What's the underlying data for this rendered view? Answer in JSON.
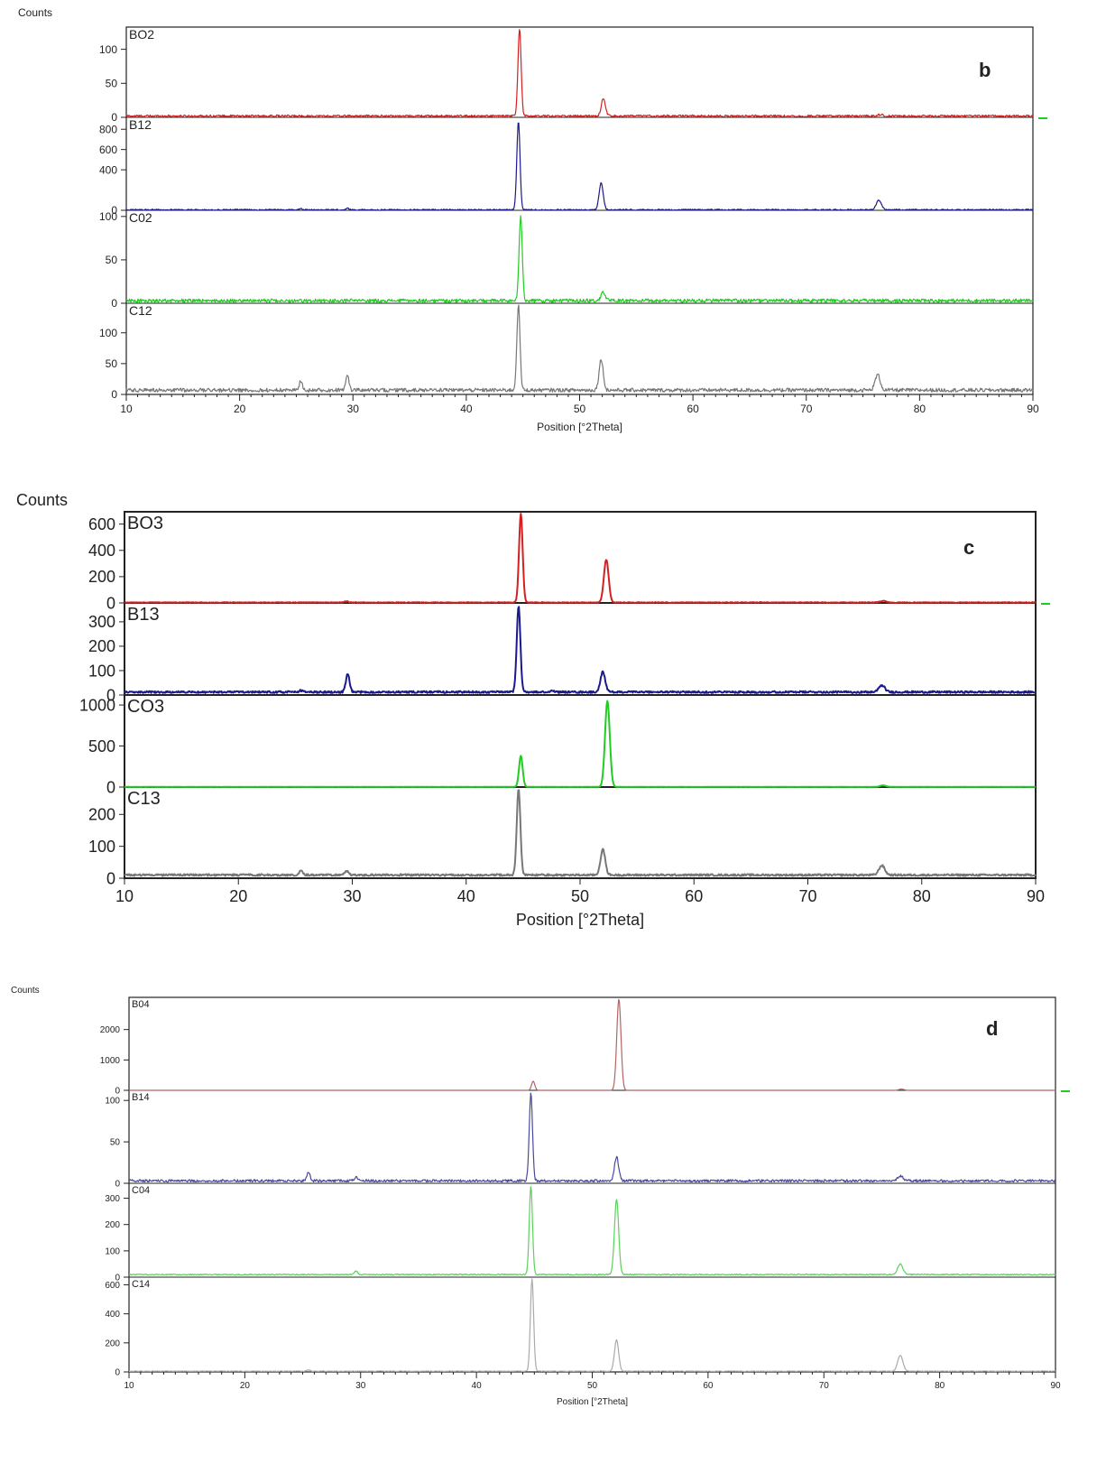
{
  "chart_data": [
    {
      "type": "line",
      "panel_label": "b",
      "ylabel": "Counts",
      "xlabel": "Position [°2Theta]",
      "xlim": [
        10,
        90
      ],
      "x_ticks": [
        10,
        20,
        30,
        40,
        50,
        60,
        70,
        80,
        90
      ],
      "x_tick_labels": [
        "10",
        "20",
        "30",
        "40",
        "50",
        "60",
        "70",
        "80",
        "90"
      ],
      "series": [
        {
          "name": "BO2",
          "color": "#d42020",
          "ylim": [
            0,
            130
          ],
          "y_ticks": [
            0,
            50,
            100
          ],
          "y_tick_labels": [
            "0",
            "50",
            "100"
          ],
          "baseline": 2,
          "noise": 1.5,
          "peaks": [
            {
              "x": 44.7,
              "y": 130
            },
            {
              "x": 52.1,
              "y": 28
            },
            {
              "x": 76.5,
              "y": 4
            }
          ]
        },
        {
          "name": "B12",
          "color": "#1a1a8c",
          "ylim": [
            0,
            900
          ],
          "y_ticks": [
            0,
            400,
            600,
            800
          ],
          "y_tick_labels": [
            "0",
            "400",
            "600",
            "800"
          ],
          "baseline": 5,
          "noise": 6,
          "peaks": [
            {
              "x": 25.4,
              "y": 15
            },
            {
              "x": 29.5,
              "y": 20
            },
            {
              "x": 44.6,
              "y": 880
            },
            {
              "x": 51.9,
              "y": 270
            },
            {
              "x": 76.4,
              "y": 100
            }
          ]
        },
        {
          "name": "C02",
          "color": "#22cc22",
          "ylim": [
            0,
            105
          ],
          "y_ticks": [
            0,
            50,
            100
          ],
          "y_tick_labels": [
            "0",
            "50",
            "100"
          ],
          "baseline": 3,
          "noise": 2,
          "peaks": [
            {
              "x": 44.8,
              "y": 100
            },
            {
              "x": 52.1,
              "y": 13
            },
            {
              "x": 76.5,
              "y": 3
            }
          ]
        },
        {
          "name": "C12",
          "color": "#777777",
          "ylim": [
            0,
            145
          ],
          "y_ticks": [
            0,
            50,
            100
          ],
          "y_tick_labels": [
            "0",
            "50",
            "100"
          ],
          "baseline": 7,
          "noise": 3,
          "peaks": [
            {
              "x": 25.4,
              "y": 22
            },
            {
              "x": 29.5,
              "y": 33
            },
            {
              "x": 44.6,
              "y": 145
            },
            {
              "x": 51.9,
              "y": 57
            },
            {
              "x": 76.3,
              "y": 32
            }
          ]
        }
      ]
    },
    {
      "type": "line",
      "panel_label": "c",
      "ylabel": "Counts",
      "xlabel": "Position [°2Theta]",
      "xlim": [
        10,
        90
      ],
      "x_ticks": [
        10,
        20,
        30,
        40,
        50,
        60,
        70,
        80,
        90
      ],
      "x_tick_labels": [
        "10",
        "20",
        "30",
        "40",
        "50",
        "60",
        "70",
        "80",
        "90"
      ],
      "series": [
        {
          "name": "BO3",
          "color": "#d42020",
          "ylim": [
            0,
            680
          ],
          "y_ticks": [
            0,
            200,
            400,
            600
          ],
          "y_tick_labels": [
            "0",
            "200",
            "400",
            "600"
          ],
          "baseline": 3,
          "noise": 3,
          "peaks": [
            {
              "x": 29.5,
              "y": 12
            },
            {
              "x": 44.8,
              "y": 680
            },
            {
              "x": 52.3,
              "y": 330
            },
            {
              "x": 76.6,
              "y": 15
            }
          ]
        },
        {
          "name": "B13",
          "color": "#1a1a8c",
          "ylim": [
            0,
            370
          ],
          "y_ticks": [
            0,
            100,
            200,
            300
          ],
          "y_tick_labels": [
            "0",
            "100",
            "200",
            "300"
          ],
          "baseline": 12,
          "noise": 4,
          "peaks": [
            {
              "x": 25.5,
              "y": 18
            },
            {
              "x": 29.6,
              "y": 85
            },
            {
              "x": 44.6,
              "y": 365
            },
            {
              "x": 47.6,
              "y": 18
            },
            {
              "x": 52.0,
              "y": 95
            },
            {
              "x": 76.5,
              "y": 40
            }
          ]
        },
        {
          "name": "CO3",
          "color": "#22cc22",
          "ylim": [
            0,
            1100
          ],
          "y_ticks": [
            0,
            500,
            1000
          ],
          "y_tick_labels": [
            "0",
            "500",
            "1000"
          ],
          "baseline": 2,
          "noise": 1,
          "peaks": [
            {
              "x": 44.8,
              "y": 380
            },
            {
              "x": 52.4,
              "y": 1050
            },
            {
              "x": 76.6,
              "y": 20
            }
          ]
        },
        {
          "name": "C13",
          "color": "#777777",
          "ylim": [
            0,
            280
          ],
          "y_ticks": [
            0,
            100,
            200
          ],
          "y_tick_labels": [
            "0",
            "100",
            "200"
          ],
          "baseline": 10,
          "noise": 3,
          "peaks": [
            {
              "x": 25.5,
              "y": 25
            },
            {
              "x": 29.5,
              "y": 22
            },
            {
              "x": 44.6,
              "y": 280
            },
            {
              "x": 52.0,
              "y": 90
            },
            {
              "x": 76.5,
              "y": 40
            }
          ]
        }
      ]
    },
    {
      "type": "line",
      "panel_label": "d",
      "ylabel": "Counts",
      "xlabel": "Position [°2Theta]",
      "xlim": [
        10,
        90
      ],
      "x_ticks": [
        10,
        20,
        30,
        40,
        50,
        60,
        70,
        80,
        90
      ],
      "x_tick_labels": [
        "10",
        "20",
        "30",
        "40",
        "50",
        "60",
        "70",
        "80",
        "90"
      ],
      "series": [
        {
          "name": "B04",
          "color": "#b46464",
          "ylim": [
            0,
            3000
          ],
          "y_ticks": [
            0,
            1000,
            2000
          ],
          "y_tick_labels": [
            "0",
            "1000",
            "2000"
          ],
          "baseline": 0,
          "noise": 0,
          "peaks": [
            {
              "x": 44.9,
              "y": 300
            },
            {
              "x": 52.3,
              "y": 3000
            },
            {
              "x": 76.7,
              "y": 40
            }
          ]
        },
        {
          "name": "B14",
          "color": "#4a4a9c",
          "ylim": [
            0,
            110
          ],
          "y_ticks": [
            0,
            50,
            100
          ],
          "y_tick_labels": [
            "0",
            "50",
            "100"
          ],
          "baseline": 3,
          "noise": 1.5,
          "peaks": [
            {
              "x": 25.5,
              "y": 13
            },
            {
              "x": 29.6,
              "y": 7
            },
            {
              "x": 44.7,
              "y": 108
            },
            {
              "x": 52.1,
              "y": 32
            },
            {
              "x": 76.6,
              "y": 9
            }
          ]
        },
        {
          "name": "C04",
          "color": "#5ad25a",
          "ylim": [
            0,
            350
          ],
          "y_ticks": [
            0,
            100,
            200,
            300
          ],
          "y_tick_labels": [
            "0",
            "100",
            "200",
            "300"
          ],
          "baseline": 10,
          "noise": 2,
          "peaks": [
            {
              "x": 29.6,
              "y": 22
            },
            {
              "x": 44.7,
              "y": 345
            },
            {
              "x": 52.1,
              "y": 295
            },
            {
              "x": 76.6,
              "y": 50
            }
          ]
        },
        {
          "name": "C14",
          "color": "#aaaaaa",
          "ylim": [
            0,
            640
          ],
          "y_ticks": [
            0,
            200,
            400,
            600
          ],
          "y_tick_labels": [
            "0",
            "200",
            "400",
            "600"
          ],
          "baseline": 5,
          "noise": 2,
          "peaks": [
            {
              "x": 25.5,
              "y": 15
            },
            {
              "x": 44.8,
              "y": 640
            },
            {
              "x": 52.1,
              "y": 220
            },
            {
              "x": 76.6,
              "y": 115
            }
          ]
        }
      ]
    }
  ]
}
